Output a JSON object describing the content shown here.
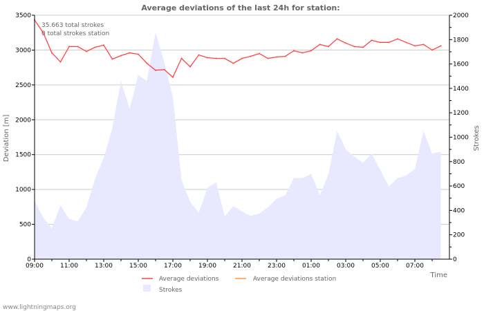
{
  "chart_data": {
    "type": "line",
    "title": "Average deviations of the last 24h for station:",
    "xlabel": "Time",
    "ylabel": "Deviation  [m]",
    "y2label": "Strokes",
    "ylim": [
      0,
      3500
    ],
    "y2lim": [
      0,
      2000
    ],
    "yticks": [
      0,
      500,
      1000,
      1500,
      2000,
      2500,
      3000,
      3500
    ],
    "y2ticks": [
      0,
      200,
      400,
      600,
      800,
      1000,
      1200,
      1400,
      1600,
      1800,
      2000
    ],
    "xticks": [
      "09:00",
      "11:00",
      "13:00",
      "15:00",
      "17:00",
      "19:00",
      "21:00",
      "23:00",
      "01:00",
      "03:00",
      "05:00",
      "07:00"
    ],
    "x_hours_from_start": [
      0,
      0.5,
      1,
      1.5,
      2,
      2.5,
      3,
      3.5,
      4,
      4.5,
      5,
      5.5,
      6,
      6.5,
      7,
      7.5,
      8,
      8.5,
      9,
      9.5,
      10,
      10.5,
      11,
      11.5,
      12,
      12.5,
      13,
      13.5,
      14,
      14.5,
      15,
      15.5,
      16,
      16.5,
      17,
      17.5,
      18,
      18.5,
      19,
      19.5,
      20,
      20.5,
      21,
      21.5,
      22,
      22.5,
      23,
      23.5
    ],
    "series": [
      {
        "name": "Average deviations",
        "color": "#ff4444",
        "axis": "left",
        "values": [
          3430,
          3250,
          2960,
          2830,
          3050,
          3050,
          2980,
          3040,
          3070,
          2870,
          2920,
          2960,
          2940,
          2810,
          2710,
          2720,
          2610,
          2880,
          2760,
          2930,
          2890,
          2880,
          2880,
          2810,
          2880,
          2910,
          2950,
          2880,
          2900,
          2910,
          2990,
          2960,
          2990,
          3080,
          3050,
          3160,
          3100,
          3050,
          3040,
          3140,
          3110,
          3110,
          3160,
          3110,
          3060,
          3080,
          3000,
          3060
        ]
      },
      {
        "name": "Average deviations station",
        "color": "#ff9933",
        "axis": "left",
        "values": []
      },
      {
        "name": "Strokes",
        "color": "#e8e8ff",
        "axis": "right",
        "type": "area",
        "values": [
          480,
          340,
          255,
          440,
          330,
          310,
          425,
          660,
          830,
          1075,
          1460,
          1230,
          1510,
          1460,
          1860,
          1615,
          1330,
          650,
          470,
          380,
          585,
          630,
          350,
          435,
          390,
          355,
          375,
          425,
          495,
          525,
          665,
          665,
          700,
          525,
          695,
          1050,
          900,
          840,
          790,
          865,
          730,
          595,
          665,
          685,
          740,
          1050,
          865,
          880
        ]
      }
    ],
    "annotations": [
      "35.663 total strokes",
      "0 total strokes station"
    ],
    "legend_placement": "bottom"
  },
  "footer": "www.lightningmaps.org"
}
